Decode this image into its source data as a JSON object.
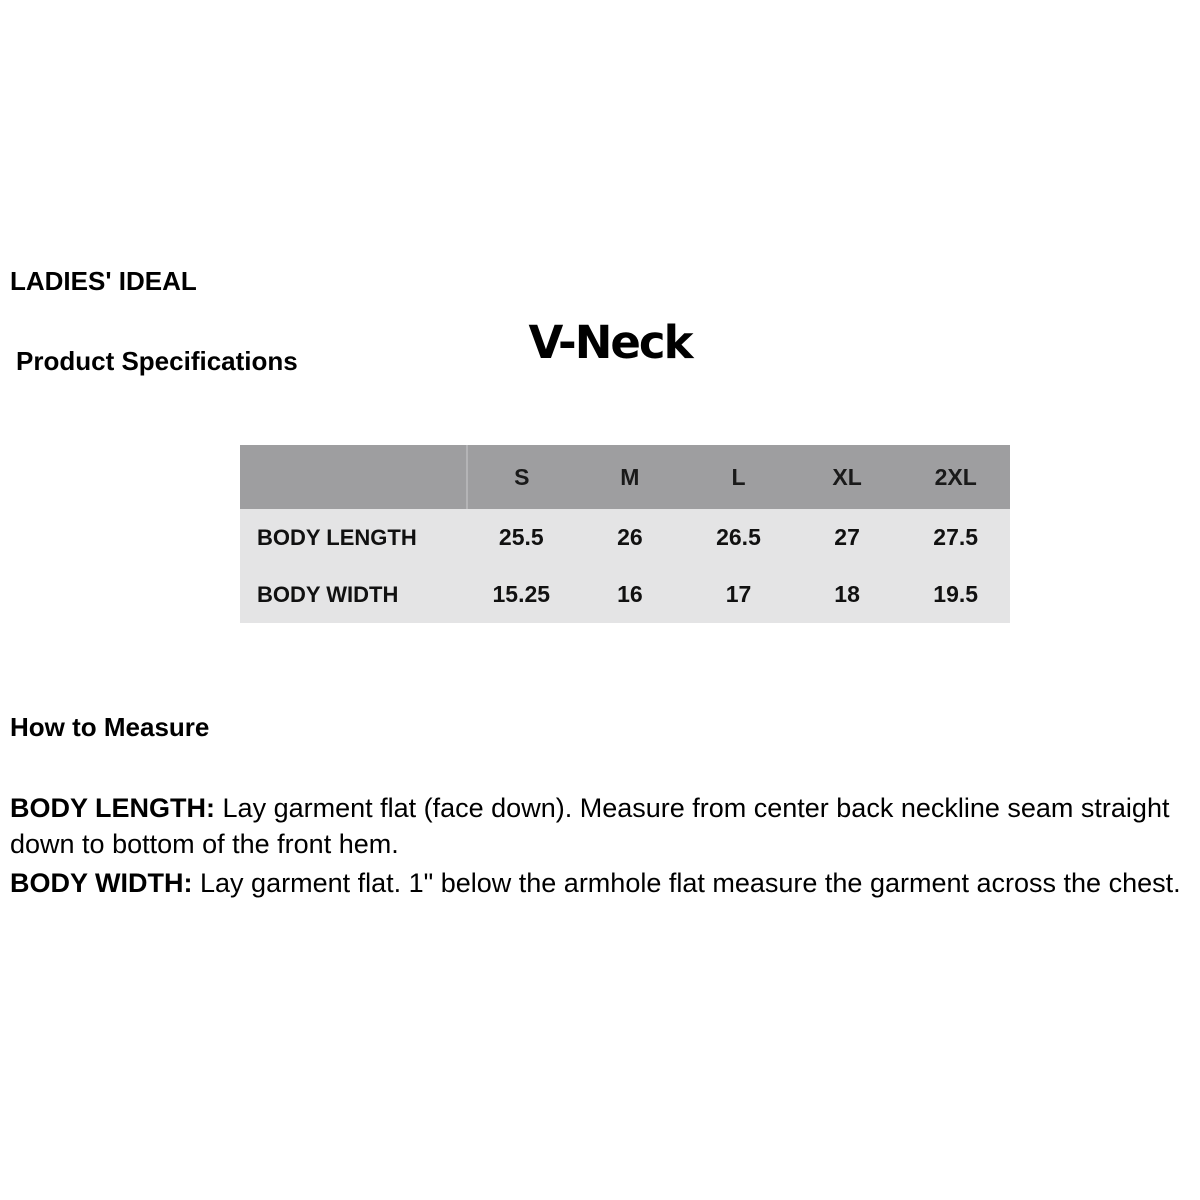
{
  "header": {
    "brand": "LADIES' IDEAL",
    "style_name": "V-Neck",
    "product_specs_heading": "Product Specifications"
  },
  "spec_table": {
    "columns": [
      "S",
      "M",
      "L",
      "XL",
      "2XL"
    ],
    "rows": [
      {
        "label": "BODY LENGTH",
        "values": [
          "25.5",
          "26",
          "26.5",
          "27",
          "27.5"
        ]
      },
      {
        "label": "BODY WIDTH",
        "values": [
          "15.25",
          "16",
          "17",
          "18",
          "19.5"
        ]
      }
    ]
  },
  "instructions": {
    "heading": "How to Measure",
    "items": [
      {
        "label": "BODY LENGTH:",
        "text": "Lay garment flat (face down). Measure from center back neckline seam straight down to bottom of the front hem."
      },
      {
        "label": "BODY WIDTH:",
        "text": "Lay garment flat. 1\" below the armhole flat measure the garment across the chest."
      }
    ]
  },
  "colors": {
    "table_header_bg": "#9e9ea0",
    "table_body_bg": "#e4e4e5",
    "header_divider": "#b4b4b6",
    "text": "#000000"
  }
}
